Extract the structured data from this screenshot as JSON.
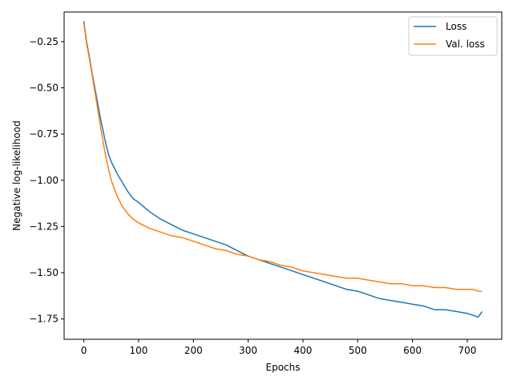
{
  "colors": {
    "loss": "#1f77b4",
    "val_loss": "#ff7f0e",
    "axes": "#000000",
    "legend_border": "#cccccc"
  },
  "chart_data": {
    "type": "line",
    "title": "",
    "xlabel": "Epochs",
    "ylabel": "Negative log-likelihood",
    "xlim": [
      -36,
      763
    ],
    "ylim": [
      -1.86,
      -0.09
    ],
    "xticks": [
      0,
      100,
      200,
      300,
      400,
      500,
      600,
      700
    ],
    "xtick_labels": [
      "0",
      "100",
      "200",
      "300",
      "400",
      "500",
      "600",
      "700"
    ],
    "yticks": [
      -0.25,
      -0.5,
      -0.75,
      -1.0,
      -1.25,
      -1.5,
      -1.75
    ],
    "ytick_labels": [
      "−0.25",
      "−0.50",
      "−0.75",
      "−1.00",
      "−1.25",
      "−1.50",
      "−1.75"
    ],
    "grid": false,
    "legend_position": "top-right",
    "series": [
      {
        "name": "Loss",
        "color": "#1f77b4",
        "x": [
          0,
          5,
          10,
          15,
          20,
          25,
          30,
          35,
          40,
          45,
          50,
          60,
          70,
          80,
          90,
          100,
          120,
          140,
          160,
          180,
          200,
          220,
          240,
          260,
          280,
          300,
          320,
          340,
          360,
          380,
          400,
          420,
          440,
          460,
          480,
          500,
          520,
          540,
          560,
          580,
          600,
          620,
          640,
          660,
          680,
          700,
          710,
          720,
          727
        ],
        "y": [
          -0.14,
          -0.25,
          -0.33,
          -0.42,
          -0.5,
          -0.58,
          -0.66,
          -0.73,
          -0.8,
          -0.86,
          -0.9,
          -0.96,
          -1.01,
          -1.06,
          -1.1,
          -1.12,
          -1.17,
          -1.21,
          -1.24,
          -1.27,
          -1.29,
          -1.31,
          -1.33,
          -1.35,
          -1.38,
          -1.41,
          -1.43,
          -1.45,
          -1.47,
          -1.49,
          -1.51,
          -1.53,
          -1.55,
          -1.57,
          -1.59,
          -1.6,
          -1.62,
          -1.64,
          -1.65,
          -1.66,
          -1.67,
          -1.68,
          -1.7,
          -1.7,
          -1.71,
          -1.72,
          -1.73,
          -1.74,
          -1.71
        ]
      },
      {
        "name": "Val. loss",
        "color": "#ff7f0e",
        "x": [
          0,
          5,
          10,
          15,
          20,
          25,
          30,
          35,
          40,
          45,
          50,
          60,
          70,
          80,
          90,
          100,
          120,
          140,
          160,
          180,
          200,
          220,
          240,
          260,
          280,
          300,
          320,
          340,
          360,
          380,
          400,
          420,
          440,
          460,
          480,
          500,
          520,
          540,
          560,
          580,
          600,
          620,
          640,
          660,
          680,
          700,
          710,
          720,
          727
        ],
        "y": [
          -0.15,
          -0.26,
          -0.34,
          -0.43,
          -0.52,
          -0.61,
          -0.7,
          -0.79,
          -0.87,
          -0.94,
          -1.0,
          -1.08,
          -1.14,
          -1.18,
          -1.21,
          -1.23,
          -1.26,
          -1.28,
          -1.3,
          -1.31,
          -1.33,
          -1.35,
          -1.37,
          -1.38,
          -1.4,
          -1.41,
          -1.43,
          -1.44,
          -1.46,
          -1.47,
          -1.49,
          -1.5,
          -1.51,
          -1.52,
          -1.53,
          -1.53,
          -1.54,
          -1.55,
          -1.56,
          -1.56,
          -1.57,
          -1.57,
          -1.58,
          -1.58,
          -1.59,
          -1.59,
          -1.59,
          -1.6,
          -1.6
        ]
      }
    ]
  }
}
